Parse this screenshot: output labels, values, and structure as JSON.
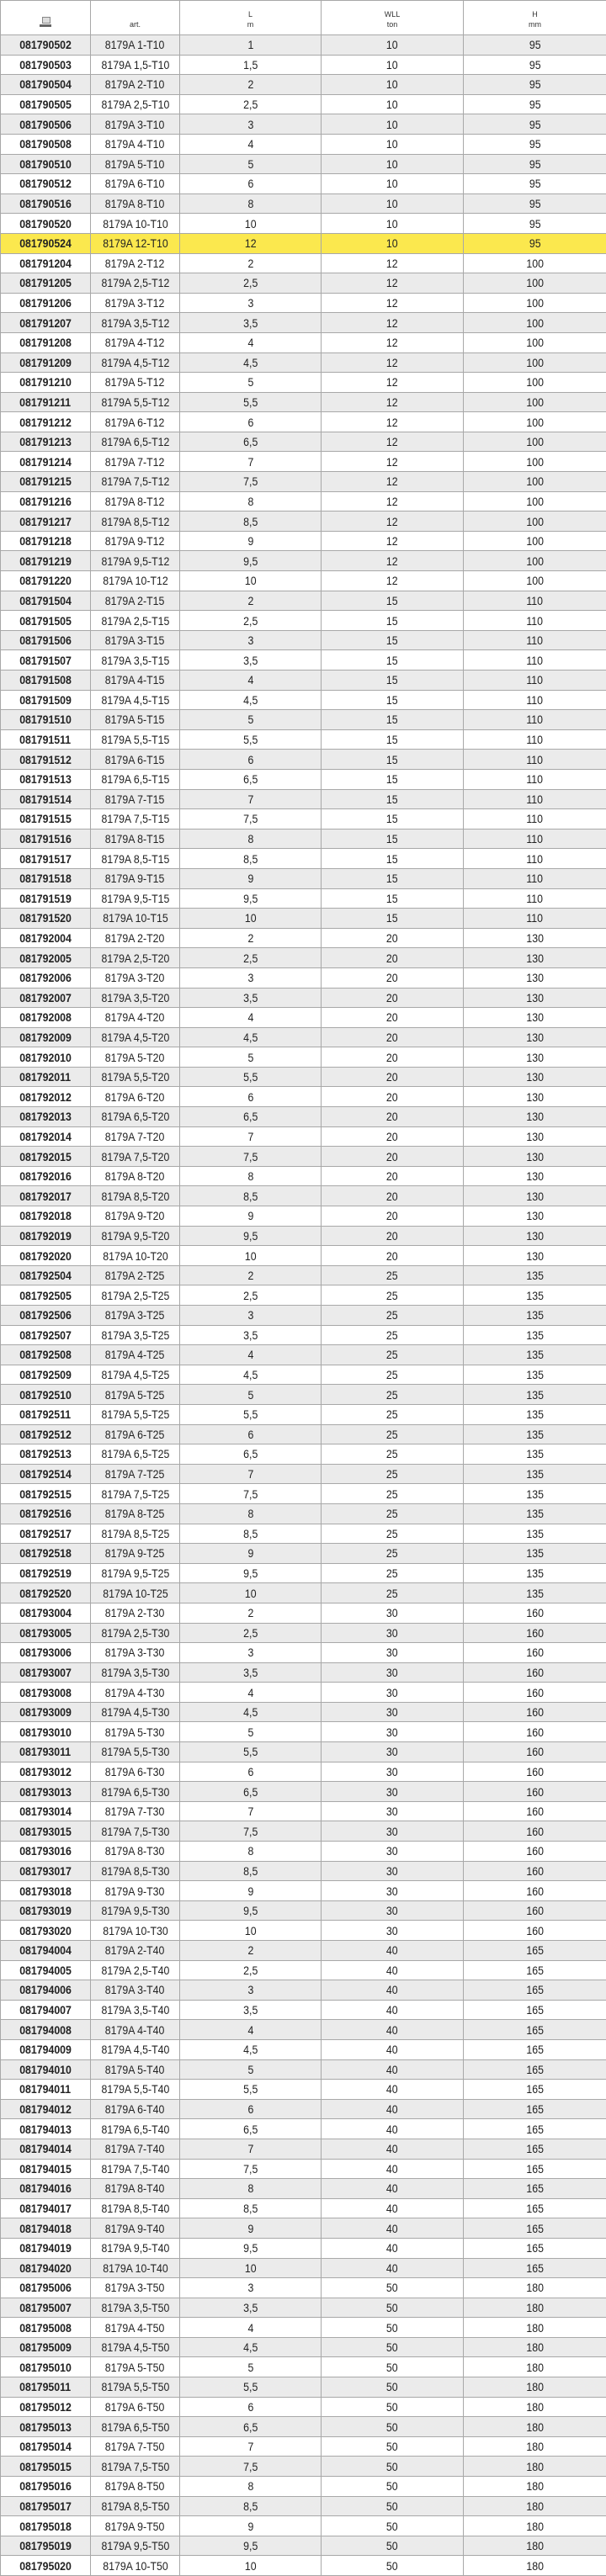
{
  "header": {
    "code_icon": "catalog-code-icon",
    "art": "art.",
    "L": "L",
    "L_unit": "m",
    "WLL": "WLL",
    "WLL_unit": "ton",
    "H": "H",
    "H_unit": "mm"
  },
  "highlight_color": "#fbe84e",
  "highlighted_code": "081790524",
  "rows": [
    [
      "081790502",
      "8179A 1-T10",
      "1",
      "10",
      "95"
    ],
    [
      "081790503",
      "8179A 1,5-T10",
      "1,5",
      "10",
      "95"
    ],
    [
      "081790504",
      "8179A 2-T10",
      "2",
      "10",
      "95"
    ],
    [
      "081790505",
      "8179A 2,5-T10",
      "2,5",
      "10",
      "95"
    ],
    [
      "081790506",
      "8179A 3-T10",
      "3",
      "10",
      "95"
    ],
    [
      "081790508",
      "8179A 4-T10",
      "4",
      "10",
      "95"
    ],
    [
      "081790510",
      "8179A 5-T10",
      "5",
      "10",
      "95"
    ],
    [
      "081790512",
      "8179A 6-T10",
      "6",
      "10",
      "95"
    ],
    [
      "081790516",
      "8179A 8-T10",
      "8",
      "10",
      "95"
    ],
    [
      "081790520",
      "8179A 10-T10",
      "10",
      "10",
      "95"
    ],
    [
      "081790524",
      "8179A 12-T10",
      "12",
      "10",
      "95"
    ],
    [
      "081791204",
      "8179A 2-T12",
      "2",
      "12",
      "100"
    ],
    [
      "081791205",
      "8179A 2,5-T12",
      "2,5",
      "12",
      "100"
    ],
    [
      "081791206",
      "8179A 3-T12",
      "3",
      "12",
      "100"
    ],
    [
      "081791207",
      "8179A 3,5-T12",
      "3,5",
      "12",
      "100"
    ],
    [
      "081791208",
      "8179A 4-T12",
      "4",
      "12",
      "100"
    ],
    [
      "081791209",
      "8179A 4,5-T12",
      "4,5",
      "12",
      "100"
    ],
    [
      "081791210",
      "8179A 5-T12",
      "5",
      "12",
      "100"
    ],
    [
      "081791211",
      "8179A 5,5-T12",
      "5,5",
      "12",
      "100"
    ],
    [
      "081791212",
      "8179A 6-T12",
      "6",
      "12",
      "100"
    ],
    [
      "081791213",
      "8179A 6,5-T12",
      "6,5",
      "12",
      "100"
    ],
    [
      "081791214",
      "8179A 7-T12",
      "7",
      "12",
      "100"
    ],
    [
      "081791215",
      "8179A 7,5-T12",
      "7,5",
      "12",
      "100"
    ],
    [
      "081791216",
      "8179A 8-T12",
      "8",
      "12",
      "100"
    ],
    [
      "081791217",
      "8179A 8,5-T12",
      "8,5",
      "12",
      "100"
    ],
    [
      "081791218",
      "8179A 9-T12",
      "9",
      "12",
      "100"
    ],
    [
      "081791219",
      "8179A 9,5-T12",
      "9,5",
      "12",
      "100"
    ],
    [
      "081791220",
      "8179A 10-T12",
      "10",
      "12",
      "100"
    ],
    [
      "081791504",
      "8179A 2-T15",
      "2",
      "15",
      "110"
    ],
    [
      "081791505",
      "8179A 2,5-T15",
      "2,5",
      "15",
      "110"
    ],
    [
      "081791506",
      "8179A 3-T15",
      "3",
      "15",
      "110"
    ],
    [
      "081791507",
      "8179A 3,5-T15",
      "3,5",
      "15",
      "110"
    ],
    [
      "081791508",
      "8179A 4-T15",
      "4",
      "15",
      "110"
    ],
    [
      "081791509",
      "8179A 4,5-T15",
      "4,5",
      "15",
      "110"
    ],
    [
      "081791510",
      "8179A 5-T15",
      "5",
      "15",
      "110"
    ],
    [
      "081791511",
      "8179A 5,5-T15",
      "5,5",
      "15",
      "110"
    ],
    [
      "081791512",
      "8179A 6-T15",
      "6",
      "15",
      "110"
    ],
    [
      "081791513",
      "8179A 6,5-T15",
      "6,5",
      "15",
      "110"
    ],
    [
      "081791514",
      "8179A 7-T15",
      "7",
      "15",
      "110"
    ],
    [
      "081791515",
      "8179A 7,5-T15",
      "7,5",
      "15",
      "110"
    ],
    [
      "081791516",
      "8179A 8-T15",
      "8",
      "15",
      "110"
    ],
    [
      "081791517",
      "8179A 8,5-T15",
      "8,5",
      "15",
      "110"
    ],
    [
      "081791518",
      "8179A 9-T15",
      "9",
      "15",
      "110"
    ],
    [
      "081791519",
      "8179A 9,5-T15",
      "9,5",
      "15",
      "110"
    ],
    [
      "081791520",
      "8179A 10-T15",
      "10",
      "15",
      "110"
    ],
    [
      "081792004",
      "8179A 2-T20",
      "2",
      "20",
      "130"
    ],
    [
      "081792005",
      "8179A 2,5-T20",
      "2,5",
      "20",
      "130"
    ],
    [
      "081792006",
      "8179A 3-T20",
      "3",
      "20",
      "130"
    ],
    [
      "081792007",
      "8179A 3,5-T20",
      "3,5",
      "20",
      "130"
    ],
    [
      "081792008",
      "8179A 4-T20",
      "4",
      "20",
      "130"
    ],
    [
      "081792009",
      "8179A 4,5-T20",
      "4,5",
      "20",
      "130"
    ],
    [
      "081792010",
      "8179A 5-T20",
      "5",
      "20",
      "130"
    ],
    [
      "081792011",
      "8179A 5,5-T20",
      "5,5",
      "20",
      "130"
    ],
    [
      "081792012",
      "8179A 6-T20",
      "6",
      "20",
      "130"
    ],
    [
      "081792013",
      "8179A 6,5-T20",
      "6,5",
      "20",
      "130"
    ],
    [
      "081792014",
      "8179A 7-T20",
      "7",
      "20",
      "130"
    ],
    [
      "081792015",
      "8179A 7,5-T20",
      "7,5",
      "20",
      "130"
    ],
    [
      "081792016",
      "8179A 8-T20",
      "8",
      "20",
      "130"
    ],
    [
      "081792017",
      "8179A 8,5-T20",
      "8,5",
      "20",
      "130"
    ],
    [
      "081792018",
      "8179A 9-T20",
      "9",
      "20",
      "130"
    ],
    [
      "081792019",
      "8179A 9,5-T20",
      "9,5",
      "20",
      "130"
    ],
    [
      "081792020",
      "8179A 10-T20",
      "10",
      "20",
      "130"
    ],
    [
      "081792504",
      "8179A 2-T25",
      "2",
      "25",
      "135"
    ],
    [
      "081792505",
      "8179A 2,5-T25",
      "2,5",
      "25",
      "135"
    ],
    [
      "081792506",
      "8179A 3-T25",
      "3",
      "25",
      "135"
    ],
    [
      "081792507",
      "8179A 3,5-T25",
      "3,5",
      "25",
      "135"
    ],
    [
      "081792508",
      "8179A 4-T25",
      "4",
      "25",
      "135"
    ],
    [
      "081792509",
      "8179A 4,5-T25",
      "4,5",
      "25",
      "135"
    ],
    [
      "081792510",
      "8179A 5-T25",
      "5",
      "25",
      "135"
    ],
    [
      "081792511",
      "8179A 5,5-T25",
      "5,5",
      "25",
      "135"
    ],
    [
      "081792512",
      "8179A 6-T25",
      "6",
      "25",
      "135"
    ],
    [
      "081792513",
      "8179A 6,5-T25",
      "6,5",
      "25",
      "135"
    ],
    [
      "081792514",
      "8179A 7-T25",
      "7",
      "25",
      "135"
    ],
    [
      "081792515",
      "8179A 7,5-T25",
      "7,5",
      "25",
      "135"
    ],
    [
      "081792516",
      "8179A 8-T25",
      "8",
      "25",
      "135"
    ],
    [
      "081792517",
      "8179A 8,5-T25",
      "8,5",
      "25",
      "135"
    ],
    [
      "081792518",
      "8179A 9-T25",
      "9",
      "25",
      "135"
    ],
    [
      "081792519",
      "8179A 9,5-T25",
      "9,5",
      "25",
      "135"
    ],
    [
      "081792520",
      "8179A 10-T25",
      "10",
      "25",
      "135"
    ],
    [
      "081793004",
      "8179A 2-T30",
      "2",
      "30",
      "160"
    ],
    [
      "081793005",
      "8179A 2,5-T30",
      "2,5",
      "30",
      "160"
    ],
    [
      "081793006",
      "8179A 3-T30",
      "3",
      "30",
      "160"
    ],
    [
      "081793007",
      "8179A 3,5-T30",
      "3,5",
      "30",
      "160"
    ],
    [
      "081793008",
      "8179A 4-T30",
      "4",
      "30",
      "160"
    ],
    [
      "081793009",
      "8179A 4,5-T30",
      "4,5",
      "30",
      "160"
    ],
    [
      "081793010",
      "8179A 5-T30",
      "5",
      "30",
      "160"
    ],
    [
      "081793011",
      "8179A 5,5-T30",
      "5,5",
      "30",
      "160"
    ],
    [
      "081793012",
      "8179A 6-T30",
      "6",
      "30",
      "160"
    ],
    [
      "081793013",
      "8179A 6,5-T30",
      "6,5",
      "30",
      "160"
    ],
    [
      "081793014",
      "8179A 7-T30",
      "7",
      "30",
      "160"
    ],
    [
      "081793015",
      "8179A 7,5-T30",
      "7,5",
      "30",
      "160"
    ],
    [
      "081793016",
      "8179A 8-T30",
      "8",
      "30",
      "160"
    ],
    [
      "081793017",
      "8179A 8,5-T30",
      "8,5",
      "30",
      "160"
    ],
    [
      "081793018",
      "8179A 9-T30",
      "9",
      "30",
      "160"
    ],
    [
      "081793019",
      "8179A 9,5-T30",
      "9,5",
      "30",
      "160"
    ],
    [
      "081793020",
      "8179A 10-T30",
      "10",
      "30",
      "160"
    ],
    [
      "081794004",
      "8179A 2-T40",
      "2",
      "40",
      "165"
    ],
    [
      "081794005",
      "8179A 2,5-T40",
      "2,5",
      "40",
      "165"
    ],
    [
      "081794006",
      "8179A 3-T40",
      "3",
      "40",
      "165"
    ],
    [
      "081794007",
      "8179A 3,5-T40",
      "3,5",
      "40",
      "165"
    ],
    [
      "081794008",
      "8179A 4-T40",
      "4",
      "40",
      "165"
    ],
    [
      "081794009",
      "8179A 4,5-T40",
      "4,5",
      "40",
      "165"
    ],
    [
      "081794010",
      "8179A 5-T40",
      "5",
      "40",
      "165"
    ],
    [
      "081794011",
      "8179A 5,5-T40",
      "5,5",
      "40",
      "165"
    ],
    [
      "081794012",
      "8179A 6-T40",
      "6",
      "40",
      "165"
    ],
    [
      "081794013",
      "8179A 6,5-T40",
      "6,5",
      "40",
      "165"
    ],
    [
      "081794014",
      "8179A 7-T40",
      "7",
      "40",
      "165"
    ],
    [
      "081794015",
      "8179A 7,5-T40",
      "7,5",
      "40",
      "165"
    ],
    [
      "081794016",
      "8179A 8-T40",
      "8",
      "40",
      "165"
    ],
    [
      "081794017",
      "8179A 8,5-T40",
      "8,5",
      "40",
      "165"
    ],
    [
      "081794018",
      "8179A 9-T40",
      "9",
      "40",
      "165"
    ],
    [
      "081794019",
      "8179A 9,5-T40",
      "9,5",
      "40",
      "165"
    ],
    [
      "081794020",
      "8179A 10-T40",
      "10",
      "40",
      "165"
    ],
    [
      "081795006",
      "8179A 3-T50",
      "3",
      "50",
      "180"
    ],
    [
      "081795007",
      "8179A 3,5-T50",
      "3,5",
      "50",
      "180"
    ],
    [
      "081795008",
      "8179A 4-T50",
      "4",
      "50",
      "180"
    ],
    [
      "081795009",
      "8179A 4,5-T50",
      "4,5",
      "50",
      "180"
    ],
    [
      "081795010",
      "8179A 5-T50",
      "5",
      "50",
      "180"
    ],
    [
      "081795011",
      "8179A 5,5-T50",
      "5,5",
      "50",
      "180"
    ],
    [
      "081795012",
      "8179A 6-T50",
      "6",
      "50",
      "180"
    ],
    [
      "081795013",
      "8179A 6,5-T50",
      "6,5",
      "50",
      "180"
    ],
    [
      "081795014",
      "8179A 7-T50",
      "7",
      "50",
      "180"
    ],
    [
      "081795015",
      "8179A 7,5-T50",
      "7,5",
      "50",
      "180"
    ],
    [
      "081795016",
      "8179A 8-T50",
      "8",
      "50",
      "180"
    ],
    [
      "081795017",
      "8179A 8,5-T50",
      "8,5",
      "50",
      "180"
    ],
    [
      "081795018",
      "8179A 9-T50",
      "9",
      "50",
      "180"
    ],
    [
      "081795019",
      "8179A 9,5-T50",
      "9,5",
      "50",
      "180"
    ],
    [
      "081795020",
      "8179A 10-T50",
      "10",
      "50",
      "180"
    ]
  ]
}
